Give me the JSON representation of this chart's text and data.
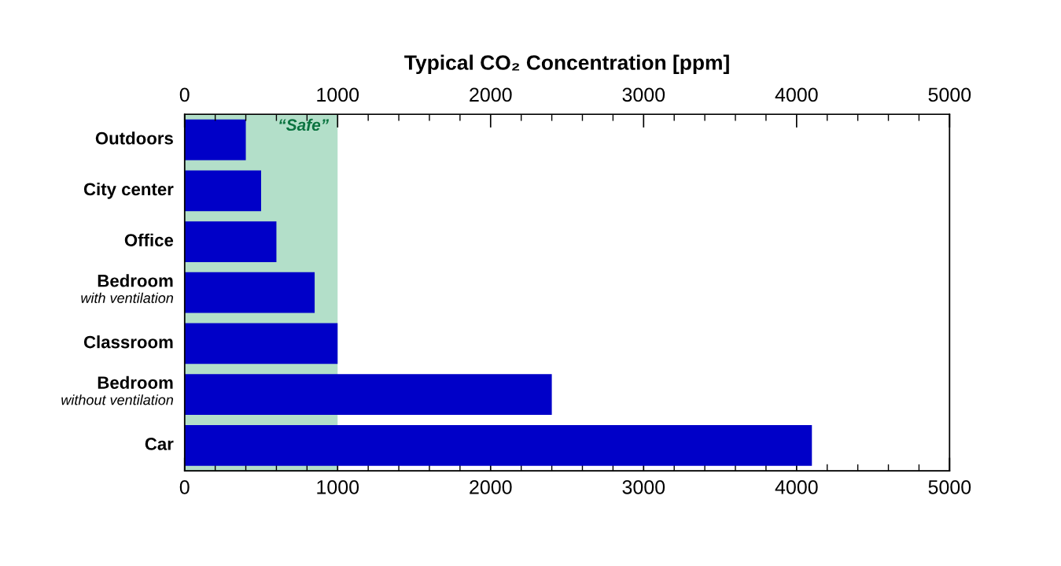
{
  "chart_data": {
    "type": "bar",
    "orientation": "horizontal",
    "x2label": "Typical CO₂ Concentration [ppm]",
    "categories": [
      "Outdoors",
      "City center",
      "Office",
      "Bedroom\nwith ventilation",
      "Classroom",
      "Bedroom\nwithout ventilation",
      "Car"
    ],
    "values": [
      400,
      500,
      600,
      850,
      1000,
      2400,
      4100
    ],
    "color": "#0000c8",
    "xlim": [
      0,
      5000
    ],
    "xticks": [
      0,
      {
        "value": 200,
        "label": null
      },
      {
        "value": 400,
        "label": null
      },
      {
        "value": 600,
        "label": null
      },
      {
        "value": 800,
        "label": null
      },
      1000,
      {
        "value": 1200,
        "label": null
      },
      {
        "value": 1400,
        "label": null
      },
      {
        "value": 1600,
        "label": null
      },
      {
        "value": 1800,
        "label": null
      },
      2000,
      {
        "value": 2200,
        "label": null
      },
      {
        "value": 2400,
        "label": null
      },
      {
        "value": 2600,
        "label": null
      },
      {
        "value": 2800,
        "label": null
      },
      3000,
      {
        "value": 3200,
        "label": null
      },
      {
        "value": 3400,
        "label": null
      },
      {
        "value": 3600,
        "label": null
      },
      {
        "value": 3800,
        "label": null
      },
      4000,
      {
        "value": 4200,
        "label": null
      },
      {
        "value": 4400,
        "label": null
      },
      {
        "value": 4600,
        "label": null
      },
      {
        "value": 4800,
        "label": null
      },
      5000
    ],
    "x2lim": [
      0,
      5000
    ],
    "x2ticks": [
      0,
      {
        "value": 200,
        "label": null
      },
      {
        "value": 400,
        "label": null
      },
      {
        "value": 600,
        "label": null
      },
      {
        "value": 800,
        "label": null
      },
      1000,
      {
        "value": 1200,
        "label": null
      },
      {
        "value": 1400,
        "label": null
      },
      {
        "value": 1600,
        "label": null
      },
      {
        "value": 1800,
        "label": null
      },
      2000,
      {
        "value": 2200,
        "label": null
      },
      {
        "value": 2400,
        "label": null
      },
      {
        "value": 2600,
        "label": null
      },
      {
        "value": 2800,
        "label": null
      },
      3000,
      {
        "value": 3200,
        "label": null
      },
      {
        "value": 3400,
        "label": null
      },
      {
        "value": 3600,
        "label": null
      },
      {
        "value": 3800,
        "label": null
      },
      4000,
      {
        "value": 4200,
        "label": null
      },
      {
        "value": 4400,
        "label": null
      },
      {
        "value": 4600,
        "label": null
      },
      {
        "value": 4800,
        "label": null
      },
      5000
    ],
    "bands": [
      {
        "axis": "x",
        "from": 0,
        "to": 1000,
        "label": "“Safe”",
        "color": "#b3dfc9"
      }
    ]
  }
}
